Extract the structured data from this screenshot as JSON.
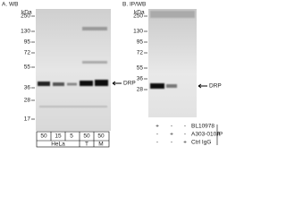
{
  "panel_a": {
    "title": "A. WB",
    "kda_label": "kDa",
    "markers": [
      "250",
      "130",
      "95",
      "72",
      "55",
      "36",
      "28",
      "17"
    ],
    "band_label": "DRP",
    "loads": [
      "50",
      "15",
      "5",
      "50",
      "50"
    ],
    "groups": [
      "HeLa",
      "T",
      "M"
    ]
  },
  "panel_b": {
    "title": "B. IP/WB",
    "kda_label": "kDa",
    "markers": [
      "250",
      "130",
      "95",
      "72",
      "55",
      "36",
      "28"
    ],
    "band_label": "DRP",
    "rows": [
      {
        "label": "BL10978",
        "signs": [
          "+",
          "-",
          "-"
        ]
      },
      {
        "label": "A303-010A",
        "signs": [
          "-",
          "+",
          "-"
        ]
      },
      {
        "label": "Ctrl IgG",
        "signs": [
          "-",
          "-",
          "+"
        ]
      }
    ],
    "ip_label": "IP"
  }
}
